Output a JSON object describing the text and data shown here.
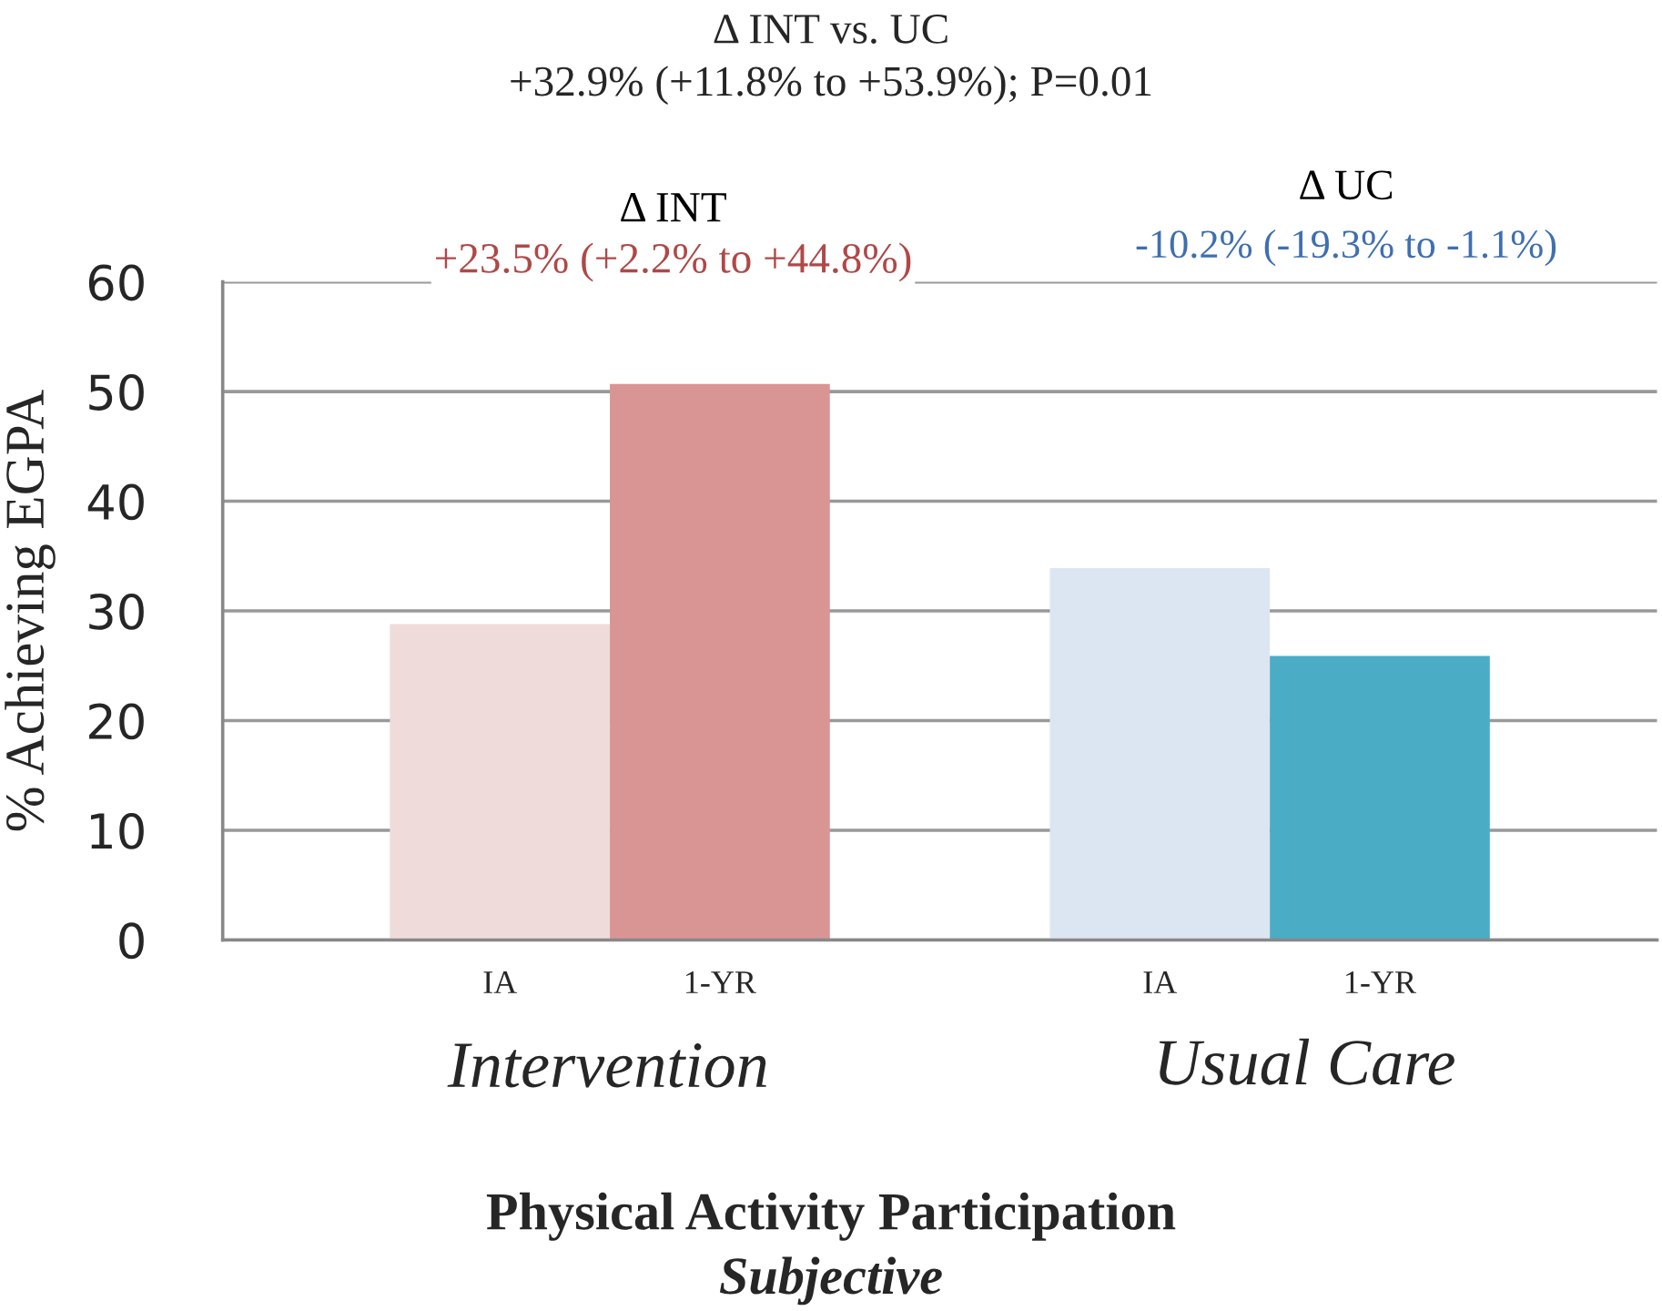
{
  "chart_data": {
    "type": "bar",
    "title": "Δ INT vs. UC",
    "subtitle": "+32.9% (+11.8% to +53.9%); P=0.01",
    "ylabel": "% Achieving EGPA",
    "xlabel": "Physical Activity Participation",
    "categories": [
      "IA",
      "1-YR",
      null,
      "IA",
      "1-YR"
    ],
    "values": [
      28.8,
      50.7,
      null,
      33.9,
      25.9
    ],
    "colors": [
      "#f0dbdb",
      "#d99594",
      null,
      "#dce6f2",
      "#4bacc6"
    ],
    "ylim": [
      0,
      60
    ],
    "yticks": [
      0,
      10,
      20,
      30,
      40,
      50,
      60
    ],
    "grid": "y",
    "annotations": [
      "Δ INT",
      "+23.5% (+2.2% to +44.8%)",
      "Δ UC",
      "-10.2% (-19.3% to -1.1%)",
      "Intervention",
      "Usual Care",
      "Subjective"
    ]
  }
}
